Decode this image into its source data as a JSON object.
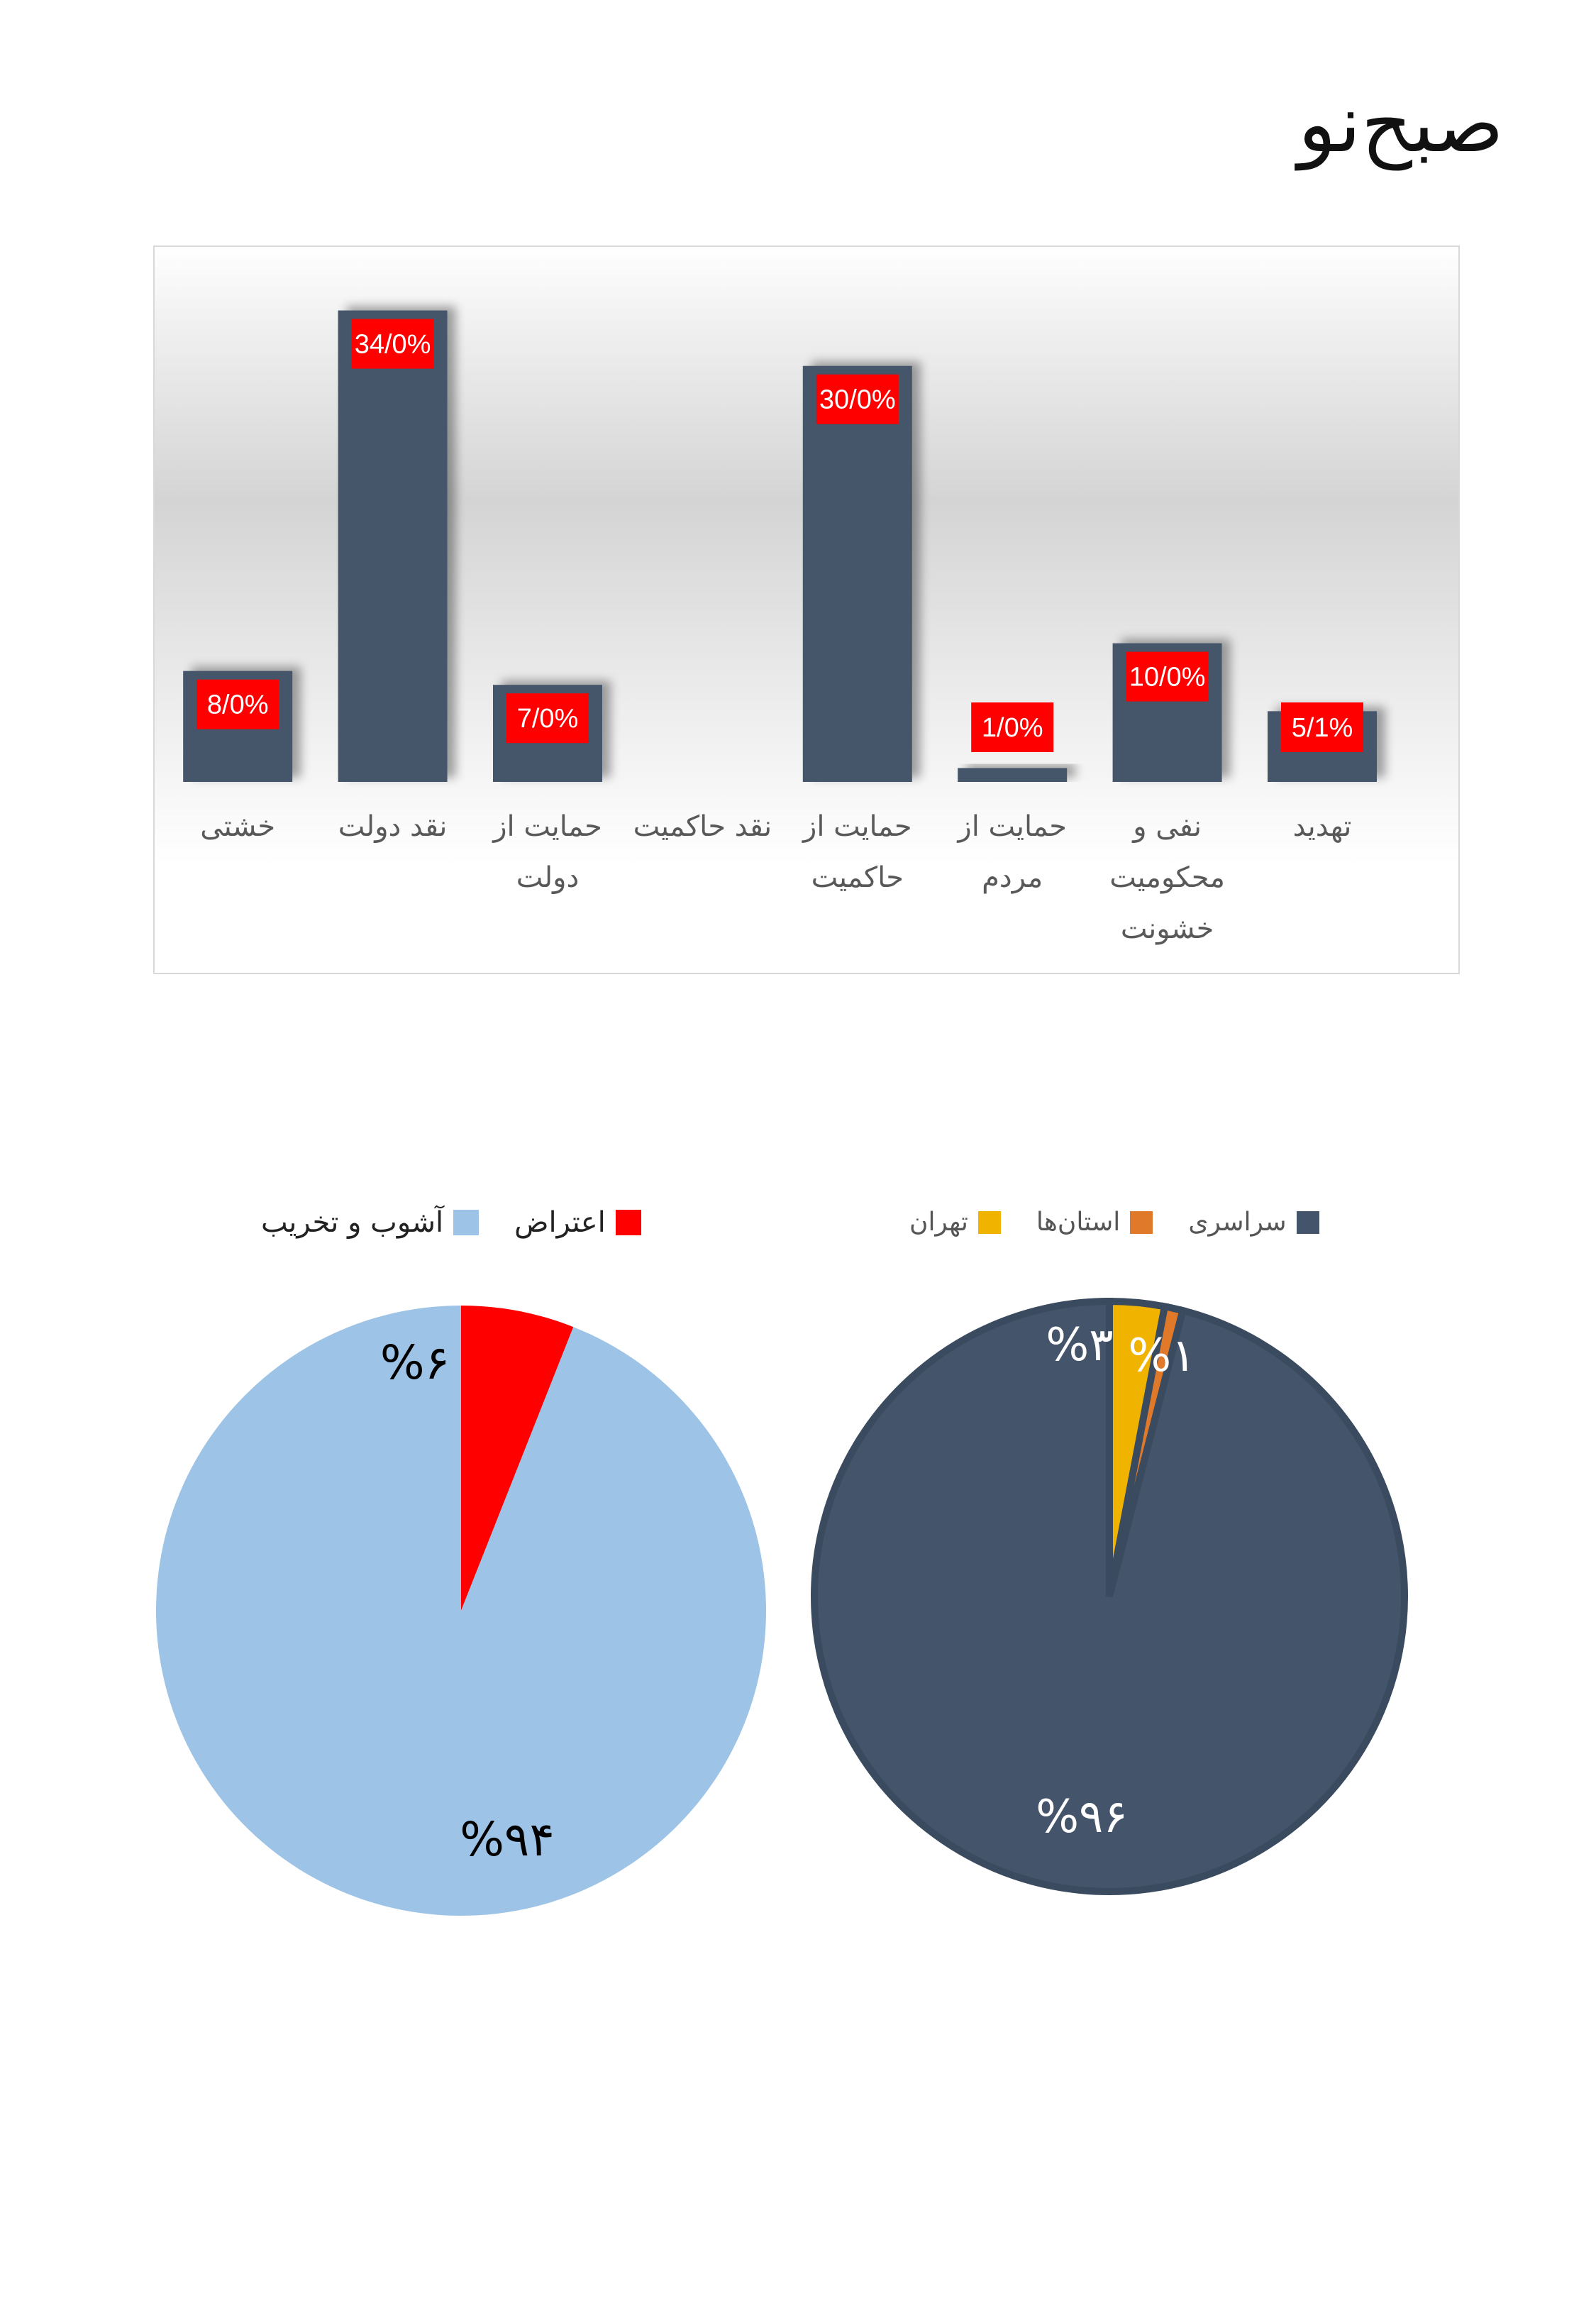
{
  "page": {
    "title": "صبح‌نو"
  },
  "chart_data": [
    {
      "type": "bar",
      "categories": [
        "تهدید",
        "نفی و محکومیت خشونت",
        "حمایت از مردم",
        "حمایت از حاکمیت",
        "نقد حاکمیت",
        "حمایت از دولت",
        "نقد دولت",
        "خشتی"
      ],
      "category_lines": [
        [
          "تهدید"
        ],
        [
          "نفی و",
          "محکومیت",
          "خشونت"
        ],
        [
          "حمایت از",
          "مردم"
        ],
        [
          "حمایت از",
          "حاکمیت"
        ],
        [
          "نقد حاکمیت"
        ],
        [
          "حمایت از",
          "دولت"
        ],
        [
          "نقد دولت"
        ],
        [
          "خشتی"
        ]
      ],
      "values": [
        5.1,
        10.0,
        1.0,
        30.0,
        null,
        7.0,
        34.0,
        8.0
      ],
      "data_labels": [
        "5/1%",
        "10/0%",
        "1/0%",
        "30/0%",
        "",
        "7/0%",
        "34/0%",
        "8/0%"
      ],
      "order": "right-to-left",
      "ylim": [
        0,
        35
      ],
      "grid": false,
      "bar_color": "#44546a",
      "label_bg_color": "#ff0000",
      "label_text_color": "#ffffff"
    },
    {
      "type": "pie",
      "labels": [
        "اعتراض",
        "آشوب و تخریب"
      ],
      "values": [
        6,
        94
      ],
      "data_labels": [
        "%۶",
        "%۹۴"
      ],
      "colors": [
        "#ff0000",
        "#9dc3e6"
      ],
      "label_color": "#000000",
      "legend": "top"
    },
    {
      "type": "pie",
      "labels": [
        "تهران",
        "استان‌ها",
        "سراسری"
      ],
      "values": [
        3,
        1,
        96
      ],
      "data_labels": [
        "%۳",
        "%۱",
        "%۹۶"
      ],
      "colors": [
        "#f0b400",
        "#e07a2a",
        "#44546a"
      ],
      "label_color": "#ffffff",
      "legend": "top"
    }
  ]
}
